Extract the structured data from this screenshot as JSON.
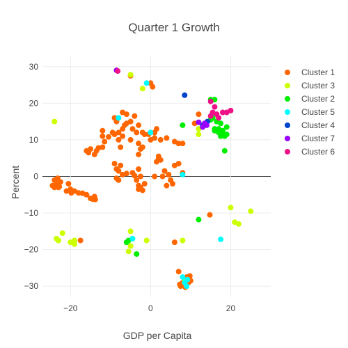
{
  "chart_data": {
    "type": "scatter",
    "title": "Quarter 1 Growth",
    "xlabel": "GDP per Capita",
    "ylabel": "Percent",
    "xlim": [
      -27,
      30
    ],
    "ylim": [
      -33,
      33
    ],
    "xticks": [
      -20,
      0,
      20
    ],
    "yticks": [
      -30,
      -20,
      -10,
      0,
      10,
      20,
      30
    ],
    "xtick_labels": [
      "−20",
      "0",
      "20"
    ],
    "ytick_labels": [
      "−30",
      "−20",
      "−10",
      "0",
      "10",
      "20",
      "30"
    ],
    "grid": true,
    "zero_line_y": true,
    "legend_position": "right",
    "series": [
      {
        "name": "Cluster 1",
        "color": "#ff6600",
        "points": [
          [
            -24,
            -1
          ],
          [
            -23.5,
            -2
          ],
          [
            -24.5,
            -2.5
          ],
          [
            -23,
            -3
          ],
          [
            -22.5,
            -1.5
          ],
          [
            -24,
            -3
          ],
          [
            -23.2,
            -0.5
          ],
          [
            -22.8,
            -2.8
          ],
          [
            -21,
            -4
          ],
          [
            -20,
            -3.5
          ],
          [
            -19.8,
            -4.5
          ],
          [
            -20.5,
            -2
          ],
          [
            -19,
            -4
          ],
          [
            -18,
            -4.5
          ],
          [
            -17,
            -4.6
          ],
          [
            -16,
            -5
          ],
          [
            -15,
            -6
          ],
          [
            -14.5,
            -6.2
          ],
          [
            -14,
            -5.5
          ],
          [
            -13.8,
            -6.3
          ],
          [
            -16,
            7
          ],
          [
            -15.5,
            6.5
          ],
          [
            -15,
            7.5
          ],
          [
            -14,
            6
          ],
          [
            -13,
            7.8
          ],
          [
            -12,
            8
          ],
          [
            -12,
            11
          ],
          [
            -12,
            12.5
          ],
          [
            -9,
            16
          ],
          [
            -8.5,
            15
          ],
          [
            -8,
            16
          ],
          [
            -9,
            11.5
          ],
          [
            -8,
            12
          ],
          [
            -7,
            13
          ],
          [
            -6.5,
            14
          ],
          [
            -7,
            11
          ],
          [
            -6,
            14.5
          ],
          [
            -5,
            15
          ],
          [
            -4.5,
            13
          ],
          [
            -4,
            16.5
          ],
          [
            -3.5,
            12
          ],
          [
            -3,
            14
          ],
          [
            -2,
            12
          ],
          [
            -1.5,
            11.5
          ],
          [
            -0.5,
            11.5
          ],
          [
            1,
            12
          ],
          [
            1.5,
            13
          ],
          [
            -8,
            10
          ],
          [
            -5,
            10
          ],
          [
            -7.5,
            8
          ],
          [
            -3,
            9
          ],
          [
            -2.5,
            7.5
          ],
          [
            -3,
            6
          ],
          [
            -2,
            8
          ],
          [
            0,
            10
          ],
          [
            1,
            10.5
          ],
          [
            2.5,
            10
          ],
          [
            -9,
            3.5
          ],
          [
            -8.5,
            2
          ],
          [
            -8,
            1.5
          ],
          [
            -7.5,
            3
          ],
          [
            -7,
            0.5
          ],
          [
            -6,
            0.8
          ],
          [
            -4.5,
            1
          ],
          [
            -4,
            0.2
          ],
          [
            -3.5,
            -1
          ],
          [
            -3,
            -2.5
          ],
          [
            -2.5,
            -3
          ],
          [
            -2,
            -3.8
          ],
          [
            -3,
            -3.5
          ],
          [
            -1.5,
            -2
          ],
          [
            -8.5,
            -0.5
          ],
          [
            -8,
            -1
          ],
          [
            2,
            5.5
          ],
          [
            1.5,
            4
          ],
          [
            2.5,
            4.5
          ],
          [
            2,
            5
          ],
          [
            5,
            -1
          ],
          [
            5.5,
            -2
          ],
          [
            4,
            -2.5
          ],
          [
            1,
            0
          ],
          [
            3.5,
            1.5
          ],
          [
            4.5,
            0.5
          ],
          [
            6,
            3
          ],
          [
            7,
            3.5
          ],
          [
            8,
            1
          ],
          [
            6,
            9.5
          ],
          [
            7,
            9
          ],
          [
            8,
            9
          ],
          [
            4,
            10.5
          ],
          [
            11,
            14.5
          ],
          [
            12,
            17
          ],
          [
            14.8,
            -10.5
          ],
          [
            6,
            -18
          ],
          [
            -5,
            27.5
          ],
          [
            0,
            25.5
          ],
          [
            0.5,
            24.5
          ],
          [
            7,
            -26
          ],
          [
            8,
            -29
          ],
          [
            7.5,
            -30
          ],
          [
            8.5,
            -28
          ],
          [
            9,
            -27.5
          ],
          [
            9.5,
            -29
          ],
          [
            10,
            -28.5
          ],
          [
            8.7,
            -30.3
          ],
          [
            9.8,
            -27.2
          ],
          [
            7.3,
            -29.5
          ],
          [
            -3,
            2
          ],
          [
            -2.5,
            0
          ],
          [
            3,
            0
          ],
          [
            -17.5,
            -17.5
          ],
          [
            -7,
            17.5
          ],
          [
            -6,
            17
          ],
          [
            -9.5,
            12
          ],
          [
            -10.5,
            10.8
          ],
          [
            -11.5,
            9.5
          ],
          [
            -13.5,
            7
          ]
        ]
      },
      {
        "name": "Cluster 3",
        "color": "#ccff00",
        "points": [
          [
            -24,
            15
          ],
          [
            -2,
            24
          ],
          [
            -23.5,
            -17
          ],
          [
            -22,
            -15.5
          ],
          [
            -23,
            -17.5
          ],
          [
            -20,
            -18
          ],
          [
            -19,
            -18.5
          ],
          [
            -19,
            -17.5
          ],
          [
            -5.5,
            -20.5
          ],
          [
            -5,
            -15
          ],
          [
            -5,
            -19
          ],
          [
            -1,
            -17.5
          ],
          [
            8,
            -17.5
          ],
          [
            20,
            -8.5
          ],
          [
            21,
            -12.5
          ],
          [
            22,
            -13
          ],
          [
            25,
            -9.5
          ],
          [
            12,
            13
          ],
          [
            12,
            11.5
          ],
          [
            -8.5,
            29
          ],
          [
            -5,
            27.8
          ],
          [
            8.5,
            -28.5
          ]
        ]
      },
      {
        "name": "Cluster 2",
        "color": "#00ee00",
        "points": [
          [
            -6,
            -18
          ],
          [
            -5.5,
            -17.5
          ],
          [
            -3.5,
            -21.2
          ],
          [
            8,
            14
          ],
          [
            12,
            -11.8
          ],
          [
            15,
            21
          ],
          [
            16,
            21
          ],
          [
            15,
            15.5
          ],
          [
            15.5,
            16
          ],
          [
            16,
            13
          ],
          [
            17,
            12
          ],
          [
            17.5,
            11
          ],
          [
            18,
            11.5
          ],
          [
            18,
            12.5
          ],
          [
            18.5,
            11
          ],
          [
            19,
            11.5
          ],
          [
            19,
            13.5
          ],
          [
            17.5,
            14.5
          ],
          [
            16.5,
            15
          ],
          [
            18.5,
            7
          ],
          [
            17,
            13
          ],
          [
            16,
            12.5
          ]
        ]
      },
      {
        "name": "Cluster 5",
        "color": "#00ffff",
        "points": [
          [
            -8,
            16
          ],
          [
            0,
            12
          ],
          [
            -1,
            25.5
          ],
          [
            8,
            0.5
          ],
          [
            -4.5,
            -17
          ],
          [
            17.5,
            -17.2
          ],
          [
            8,
            -27.5
          ],
          [
            9,
            -30
          ],
          [
            8.5,
            -29
          ],
          [
            9.2,
            -28.2
          ]
        ]
      },
      {
        "name": "Cluster 4",
        "color": "#0044cc",
        "points": [
          [
            8.5,
            22.2
          ],
          [
            13,
            14
          ],
          [
            14.2,
            15
          ]
        ]
      },
      {
        "name": "Cluster 7",
        "color": "#9900ff",
        "points": [
          [
            -8.5,
            29
          ],
          [
            12,
            14.8
          ],
          [
            13,
            13.5
          ],
          [
            13.5,
            14.5
          ],
          [
            14,
            14
          ]
        ]
      },
      {
        "name": "Cluster 6",
        "color": "#ee1188",
        "points": [
          [
            -8.2,
            28.8
          ],
          [
            15,
            20.5
          ],
          [
            16,
            19
          ],
          [
            15.5,
            17.5
          ],
          [
            15,
            16.5
          ],
          [
            16.5,
            17
          ],
          [
            17,
            16
          ],
          [
            18,
            17.5
          ],
          [
            19,
            17.5
          ],
          [
            20,
            18
          ]
        ]
      }
    ]
  }
}
